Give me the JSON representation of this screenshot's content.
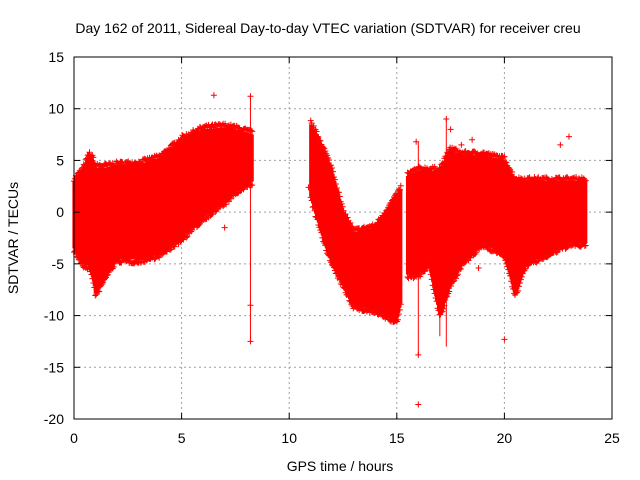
{
  "chart_data": {
    "type": "scatter",
    "title": "Day 162 of 2011, Sidereal Day-to-day VTEC variation (SDTVAR) for receiver creu",
    "xlabel": "GPS time / hours",
    "ylabel": "SDTVAR / TECUs",
    "xlim": [
      0,
      25
    ],
    "ylim": [
      -20,
      15
    ],
    "x_ticks": [
      0,
      5,
      10,
      15,
      20,
      25
    ],
    "y_ticks": [
      -20,
      -15,
      -10,
      -5,
      0,
      5,
      10,
      15
    ],
    "x_tick_labels": [
      "0",
      "5",
      "10",
      "15",
      "20",
      "25"
    ],
    "y_tick_labels": [
      "-20",
      "-15",
      "-10",
      "-5",
      "0",
      "5",
      "10",
      "15"
    ],
    "grid": true,
    "marker": "+",
    "color": "#ff0000",
    "series": [
      {
        "name": "SDTVAR",
        "envelope": [
          {
            "x": 0.0,
            "lo": -3.5,
            "hi": 3.0
          },
          {
            "x": 0.4,
            "lo": -5.0,
            "hi": 4.0
          },
          {
            "x": 0.7,
            "lo": -5.2,
            "hi": 5.5
          },
          {
            "x": 0.9,
            "lo": -6.5,
            "hi": 5.0
          },
          {
            "x": 1.0,
            "lo": -8.0,
            "hi": 4.3
          },
          {
            "x": 1.5,
            "lo": -6.0,
            "hi": 4.3
          },
          {
            "x": 2.0,
            "lo": -4.5,
            "hi": 4.5
          },
          {
            "x": 3.0,
            "lo": -4.6,
            "hi": 4.6
          },
          {
            "x": 4.0,
            "lo": -4.0,
            "hi": 5.2
          },
          {
            "x": 5.0,
            "lo": -2.5,
            "hi": 7.0
          },
          {
            "x": 6.0,
            "lo": -0.5,
            "hi": 8.0
          },
          {
            "x": 7.0,
            "lo": 1.0,
            "hi": 8.2
          },
          {
            "x": 7.5,
            "lo": 2.0,
            "hi": 8.0
          },
          {
            "x": 8.3,
            "lo": 3.0,
            "hi": 7.5
          },
          {
            "x": 11.0,
            "lo": 1.5,
            "hi": 8.5
          },
          {
            "x": 11.5,
            "lo": -2.0,
            "hi": 6.5
          },
          {
            "x": 12.0,
            "lo": -5.0,
            "hi": 4.0
          },
          {
            "x": 12.5,
            "lo": -7.0,
            "hi": 0.0
          },
          {
            "x": 13.0,
            "lo": -9.0,
            "hi": -2.0
          },
          {
            "x": 14.0,
            "lo": -9.5,
            "hi": -1.5
          },
          {
            "x": 15.0,
            "lo": -10.5,
            "hi": 1.5
          },
          {
            "x": 15.5,
            "lo": -6.0,
            "hi": 3.5
          },
          {
            "x": 16.0,
            "lo": -6.0,
            "hi": 4.0
          },
          {
            "x": 16.5,
            "lo": -5.0,
            "hi": 4.0
          },
          {
            "x": 17.0,
            "lo": -10.0,
            "hi": 4.0
          },
          {
            "x": 17.5,
            "lo": -7.0,
            "hi": 6.0
          },
          {
            "x": 18.0,
            "lo": -5.0,
            "hi": 5.5
          },
          {
            "x": 19.0,
            "lo": -3.0,
            "hi": 5.5
          },
          {
            "x": 20.0,
            "lo": -4.0,
            "hi": 5.0
          },
          {
            "x": 20.5,
            "lo": -8.0,
            "hi": 3.0
          },
          {
            "x": 21.0,
            "lo": -5.0,
            "hi": 3.0
          },
          {
            "x": 22.0,
            "lo": -4.0,
            "hi": 3.0
          },
          {
            "x": 23.0,
            "lo": -3.0,
            "hi": 3.0
          },
          {
            "x": 23.8,
            "lo": -3.0,
            "hi": 3.0
          }
        ],
        "outliers": [
          {
            "x": 6.5,
            "y": 11.3
          },
          {
            "x": 8.2,
            "y": 11.2
          },
          {
            "x": 8.2,
            "y": -12.5
          },
          {
            "x": 8.2,
            "y": -9.0
          },
          {
            "x": 7.0,
            "y": -1.5
          },
          {
            "x": 16.0,
            "y": -18.6
          },
          {
            "x": 16.0,
            "y": -13.8
          },
          {
            "x": 15.9,
            "y": 6.8
          },
          {
            "x": 17.3,
            "y": 9.0
          },
          {
            "x": 17.5,
            "y": 8.0
          },
          {
            "x": 18.0,
            "y": 6.5
          },
          {
            "x": 18.5,
            "y": 7.0
          },
          {
            "x": 18.8,
            "y": -5.4
          },
          {
            "x": 20.0,
            "y": -12.3
          },
          {
            "x": 22.6,
            "y": 6.5
          },
          {
            "x": 23.0,
            "y": 7.3
          },
          {
            "x": 10.9,
            "y": 2.4
          }
        ]
      }
    ]
  }
}
